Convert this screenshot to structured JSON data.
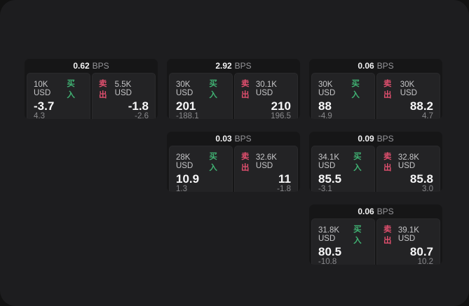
{
  "labels": {
    "bps_unit": "BPS",
    "buy": "买入",
    "sell": "卖出"
  },
  "colors": {
    "buy": "#40b273",
    "sell": "#e04f6e",
    "window_bg": "#1d1d1f",
    "outer_bg": "#121212",
    "card_bg": "#161617",
    "panel_bg": "#232325"
  },
  "cards": [
    {
      "row": 1,
      "col": 1,
      "bps": "0.62",
      "buy": {
        "notional": "10K USD",
        "price": "-3.7",
        "delta": "4.3"
      },
      "sell": {
        "notional": "5.5K USD",
        "price": "-1.8",
        "delta": "-2.6"
      }
    },
    {
      "row": 1,
      "col": 2,
      "bps": "2.92",
      "buy": {
        "notional": "30K USD",
        "price": "201",
        "delta": "-188.1"
      },
      "sell": {
        "notional": "30.1K USD",
        "price": "210",
        "delta": "196.5"
      }
    },
    {
      "row": 1,
      "col": 3,
      "bps": "0.06",
      "buy": {
        "notional": "30K USD",
        "price": "88",
        "delta": "-4.9"
      },
      "sell": {
        "notional": "30K USD",
        "price": "88.2",
        "delta": "4.7"
      }
    },
    {
      "row": 2,
      "col": 2,
      "bps": "0.03",
      "buy": {
        "notional": "28K USD",
        "price": "10.9",
        "delta": "1.3"
      },
      "sell": {
        "notional": "32.6K USD",
        "price": "11",
        "delta": "-1.8"
      }
    },
    {
      "row": 2,
      "col": 3,
      "bps": "0.09",
      "buy": {
        "notional": "34.1K USD",
        "price": "85.5",
        "delta": "-3.1"
      },
      "sell": {
        "notional": "32.8K USD",
        "price": "85.8",
        "delta": "3.0"
      }
    },
    {
      "row": 3,
      "col": 3,
      "bps": "0.06",
      "buy": {
        "notional": "31.8K USD",
        "price": "80.5",
        "delta": "-10.8"
      },
      "sell": {
        "notional": "39.1K USD",
        "price": "80.7",
        "delta": "10.2"
      }
    }
  ]
}
